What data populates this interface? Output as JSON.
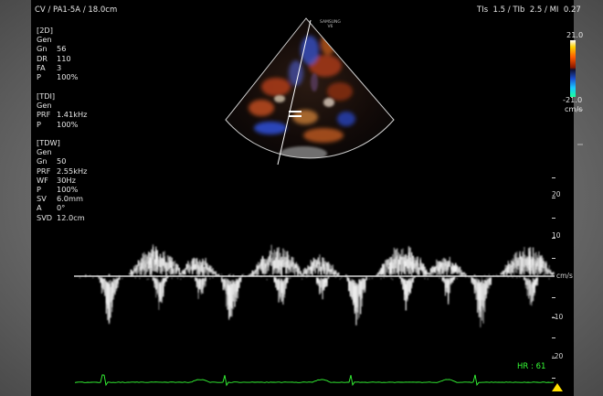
{
  "header": {
    "left": "CV / PA1-5A / 18.0cm",
    "mode_icon": "probe-icon",
    "right": "TIs  1.5 / TIb  2.5 / MI  0.27"
  },
  "vendor": {
    "line1": "SAMSUNG",
    "line2": "V6"
  },
  "params_2d": {
    "title": "[2D]",
    "mode": "Gen",
    "rows": [
      {
        "k": "Gn",
        "v": "56"
      },
      {
        "k": "DR",
        "v": "110"
      },
      {
        "k": "FA",
        "v": "3"
      },
      {
        "k": "P",
        "v": "100%"
      }
    ]
  },
  "params_tdi": {
    "title": "[TDI]",
    "mode": "Gen",
    "rows": [
      {
        "k": "PRF",
        "v": "1.41kHz"
      },
      {
        "k": "P",
        "v": "100%"
      }
    ]
  },
  "params_tdw": {
    "title": "[TDW]",
    "mode": "Gen",
    "rows": [
      {
        "k": "Gn",
        "v": "50"
      },
      {
        "k": "PRF",
        "v": "2.55kHz"
      },
      {
        "k": "WF",
        "v": "30Hz"
      },
      {
        "k": "P",
        "v": "100%"
      },
      {
        "k": "SV",
        "v": "6.0mm"
      },
      {
        "k": "A",
        "v": "0°"
      },
      {
        "k": "SVD",
        "v": "12.0cm"
      }
    ]
  },
  "color_scale": {
    "max": "21.0",
    "min": "-21.0",
    "unit": "cm/s"
  },
  "velocity_scale": {
    "ticks": [
      "20",
      "10",
      "cm/s",
      "-10",
      "-20"
    ],
    "baseline_label": "cm/s"
  },
  "heart_rate": "HR : 61",
  "colors": {
    "ecg": "#36ff36",
    "text": "#e6e6e6",
    "background": "#000000"
  }
}
